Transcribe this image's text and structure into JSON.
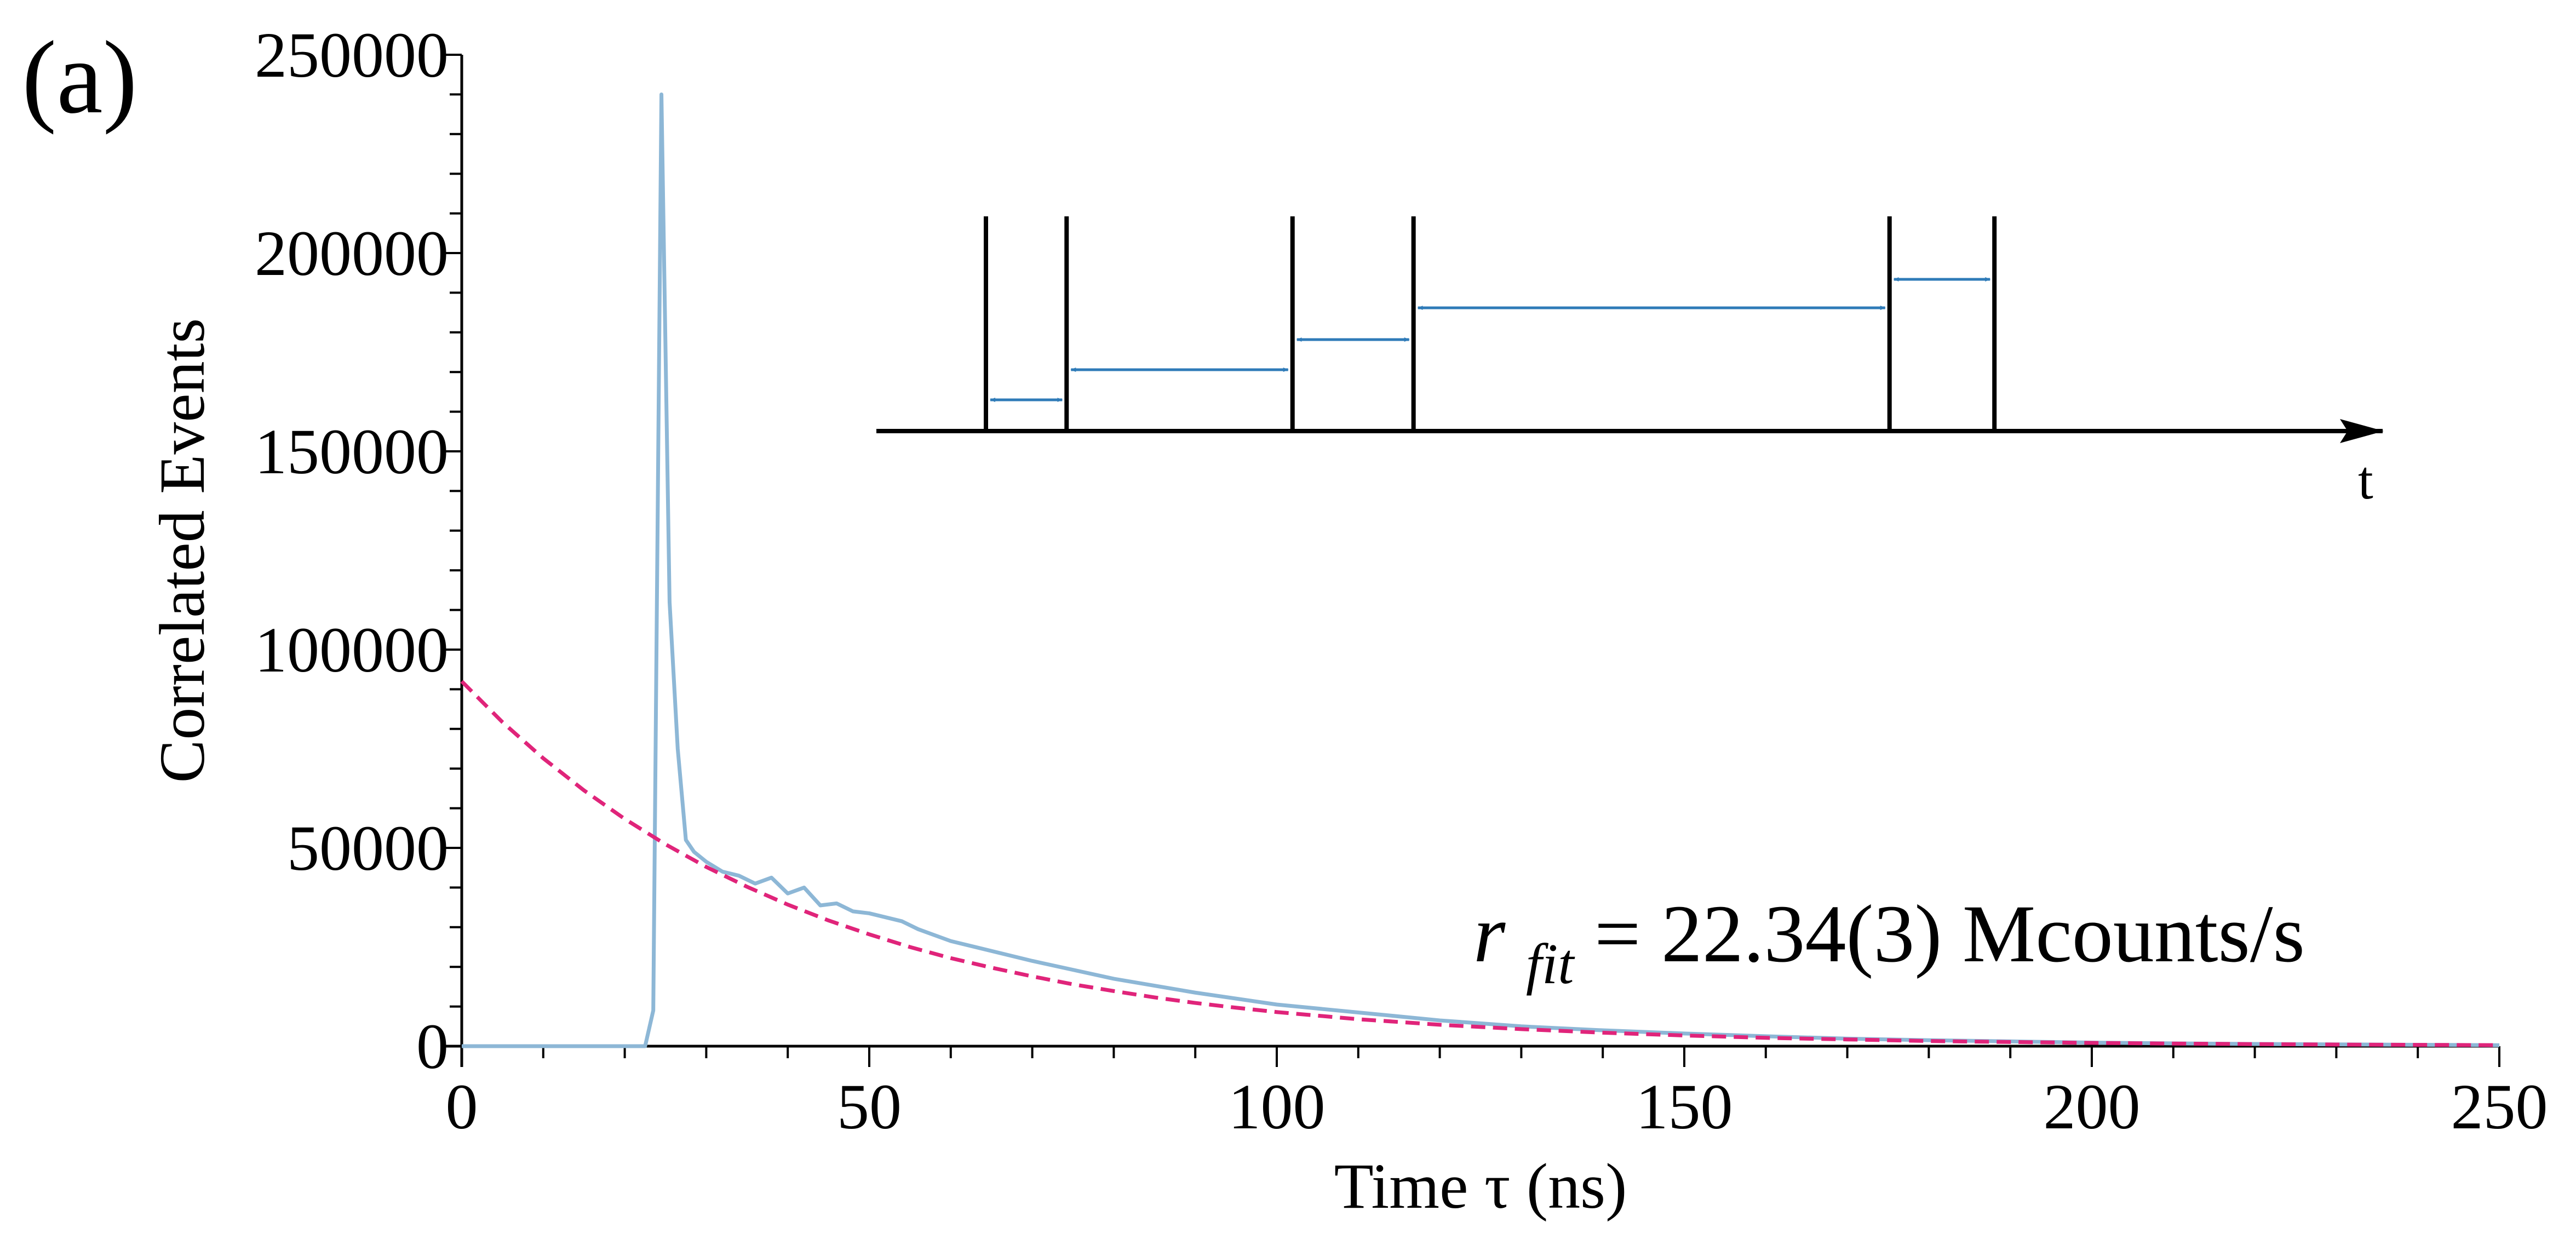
{
  "panel_label": "(a)",
  "annotation": {
    "symbol": "r",
    "subscript": "fit",
    "value_text": " = 22.34(3) Mcounts/s"
  },
  "chart_data": {
    "type": "line",
    "xlabel": "Time τ (ns)",
    "ylabel": "Correlated Events",
    "xlim": [
      0,
      250
    ],
    "ylim": [
      0,
      250000
    ],
    "x_ticks": [
      0,
      50,
      100,
      150,
      200,
      250
    ],
    "y_ticks": [
      0,
      50000,
      100000,
      150000,
      200000,
      250000
    ],
    "x_minor_step": 10,
    "y_minor_step": 10000,
    "colors": {
      "data": "#8db7d6",
      "fit": "#e0247a",
      "inset_arrows": "#2f7bb8",
      "axes": "#000000"
    },
    "series": [
      {
        "style": "solid",
        "x": [
          0,
          3,
          5,
          10,
          15,
          20,
          22.5,
          23.5,
          24.5,
          25.5,
          26.5,
          27.5,
          28.5,
          30,
          32,
          34,
          36,
          38,
          40,
          42,
          44,
          46,
          48,
          50,
          52,
          54,
          56,
          60,
          70,
          80,
          90,
          100,
          110,
          120,
          130,
          140,
          150,
          160,
          170,
          180,
          190,
          200,
          210,
          220,
          230,
          240,
          250
        ],
        "y": [
          0,
          0,
          0,
          0,
          0,
          0,
          0,
          9000,
          240000,
          112000,
          75000,
          52000,
          49000,
          46500,
          44000,
          43000,
          41000,
          42500,
          38500,
          40000,
          35500,
          36000,
          34000,
          33500,
          32500,
          31500,
          29500,
          26500,
          21500,
          17000,
          13500,
          10500,
          8500,
          6500,
          5000,
          4000,
          3200,
          2500,
          1900,
          1500,
          1200,
          900,
          700,
          550,
          450,
          350,
          250
        ]
      },
      {
        "style": "dashed",
        "x": [
          0,
          5,
          10,
          15,
          20,
          25,
          30,
          35,
          40,
          45,
          50,
          55,
          60,
          65,
          70,
          75,
          80,
          85,
          90,
          95,
          100,
          110,
          120,
          130,
          140,
          150,
          160,
          170,
          180,
          190,
          200,
          210,
          220,
          230,
          240,
          250
        ],
        "y": [
          92000,
          81700,
          72600,
          64500,
          57300,
          50900,
          45200,
          40200,
          35700,
          31700,
          28200,
          25000,
          22200,
          19800,
          17600,
          15600,
          13900,
          12300,
          10900,
          9700,
          8600,
          6800,
          5400,
          4300,
          3400,
          2700,
          2100,
          1700,
          1300,
          1050,
          830,
          660,
          520,
          410,
          330,
          260
        ]
      }
    ],
    "inset": {
      "axis_label": "t",
      "event_times": [
        0,
        1,
        3.8,
        5.3,
        11.2,
        12.5
      ],
      "t_max": 14.8
    }
  }
}
